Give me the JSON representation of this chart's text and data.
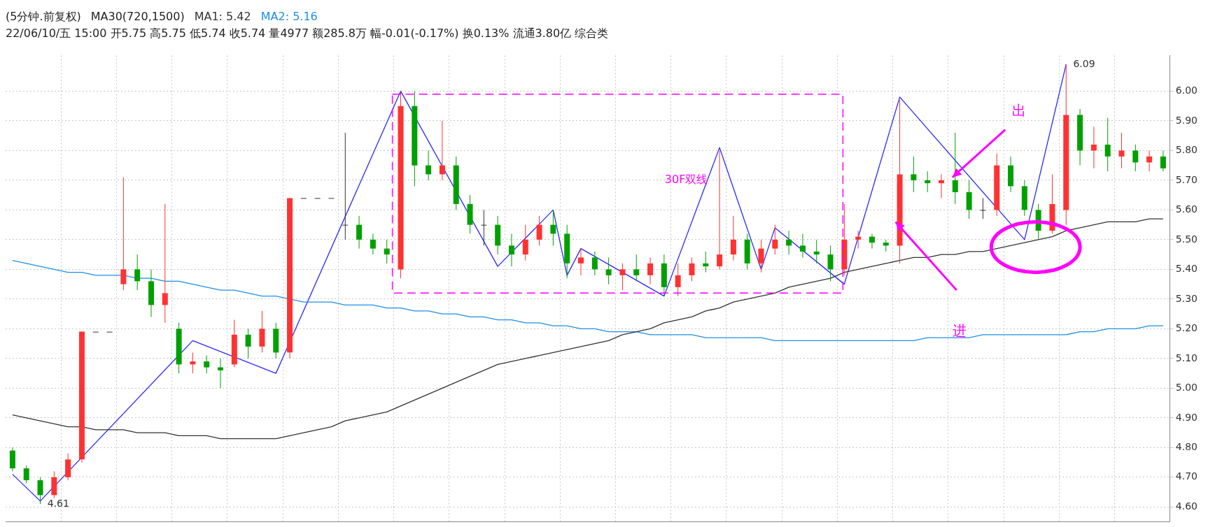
{
  "chart_data": {
    "type": "candlestick",
    "title": "(5分钟.前复权)",
    "subtitle": "22/06/10/五 15:00 开5.75 高5.75 低5.74 收5.74 量4977 额285.8万 幅-0.01(-0.17%) 换0.13% 流通3.80亿 综合类",
    "legend_title": "MA30(720,1500)",
    "categories": [
      null,
      null,
      null,
      null,
      null,
      null,
      null,
      null,
      null,
      null,
      null,
      null,
      null,
      null,
      null,
      null,
      null,
      null,
      null,
      null,
      null,
      null,
      null,
      null,
      null,
      null,
      null,
      null,
      null,
      null,
      null,
      null,
      null,
      null,
      null,
      null,
      null,
      null,
      null,
      null,
      null,
      null,
      null,
      null,
      null,
      null,
      null,
      null,
      null,
      null,
      null,
      null,
      null,
      null,
      null,
      null,
      null,
      null,
      null,
      null,
      null,
      null,
      null,
      null,
      null,
      null,
      null,
      null,
      null,
      null,
      null,
      null,
      null,
      null,
      null,
      null,
      null,
      null,
      null,
      null,
      null,
      null,
      null,
      null
    ],
    "ohlc": [
      [
        4.79,
        4.8,
        4.72,
        4.73
      ],
      [
        4.73,
        4.74,
        4.68,
        4.69
      ],
      [
        4.69,
        4.7,
        4.61,
        4.64
      ],
      [
        4.64,
        4.72,
        4.63,
        4.7
      ],
      [
        4.7,
        4.78,
        4.69,
        4.76
      ],
      [
        4.76,
        5.19,
        4.75,
        5.19
      ],
      [
        5.19,
        5.19,
        5.19,
        5.19
      ],
      [
        5.19,
        5.19,
        5.19,
        5.19
      ],
      [
        5.35,
        5.71,
        5.33,
        5.4
      ],
      [
        5.4,
        5.45,
        5.33,
        5.36
      ],
      [
        5.36,
        5.4,
        5.24,
        5.28
      ],
      [
        5.28,
        5.62,
        5.22,
        5.32
      ],
      [
        5.2,
        5.22,
        5.05,
        5.08
      ],
      [
        5.08,
        5.12,
        5.05,
        5.09
      ],
      [
        5.09,
        5.11,
        5.05,
        5.07
      ],
      [
        5.07,
        5.1,
        5.0,
        5.06
      ],
      [
        5.08,
        5.23,
        5.07,
        5.18
      ],
      [
        5.18,
        5.2,
        5.1,
        5.14
      ],
      [
        5.14,
        5.26,
        5.12,
        5.2
      ],
      [
        5.2,
        5.22,
        5.1,
        5.12
      ],
      [
        5.12,
        5.64,
        5.1,
        5.64
      ],
      [
        5.64,
        5.64,
        5.64,
        5.64
      ],
      [
        5.64,
        5.64,
        5.64,
        5.64
      ],
      [
        5.64,
        5.64,
        5.64,
        5.64
      ],
      [
        5.55,
        5.86,
        5.5,
        5.55
      ],
      [
        5.55,
        5.58,
        5.47,
        5.5
      ],
      [
        5.5,
        5.52,
        5.45,
        5.47
      ],
      [
        5.47,
        5.5,
        5.42,
        5.45
      ],
      [
        5.4,
        6.0,
        5.37,
        5.95
      ],
      [
        5.95,
        6.0,
        5.68,
        5.75
      ],
      [
        5.75,
        5.8,
        5.7,
        5.72
      ],
      [
        5.72,
        5.9,
        5.7,
        5.75
      ],
      [
        5.75,
        5.78,
        5.6,
        5.62
      ],
      [
        5.62,
        5.65,
        5.52,
        5.55
      ],
      [
        5.55,
        5.6,
        5.48,
        5.55
      ],
      [
        5.55,
        5.58,
        5.45,
        5.48
      ],
      [
        5.48,
        5.52,
        5.41,
        5.45
      ],
      [
        5.45,
        5.55,
        5.43,
        5.5
      ],
      [
        5.5,
        5.58,
        5.48,
        5.55
      ],
      [
        5.55,
        5.6,
        5.48,
        5.52
      ],
      [
        5.52,
        5.55,
        5.37,
        5.42
      ],
      [
        5.42,
        5.47,
        5.38,
        5.44
      ],
      [
        5.44,
        5.46,
        5.38,
        5.4
      ],
      [
        5.4,
        5.44,
        5.35,
        5.38
      ],
      [
        5.38,
        5.42,
        5.33,
        5.4
      ],
      [
        5.4,
        5.45,
        5.36,
        5.38
      ],
      [
        5.38,
        5.44,
        5.35,
        5.42
      ],
      [
        5.42,
        5.45,
        5.31,
        5.34
      ],
      [
        5.34,
        5.42,
        5.31,
        5.38
      ],
      [
        5.38,
        5.44,
        5.36,
        5.42
      ],
      [
        5.42,
        5.46,
        5.39,
        5.41
      ],
      [
        5.41,
        5.8,
        5.4,
        5.45
      ],
      [
        5.45,
        5.58,
        5.43,
        5.5
      ],
      [
        5.5,
        5.52,
        5.4,
        5.42
      ],
      [
        5.42,
        5.5,
        5.39,
        5.47
      ],
      [
        5.47,
        5.55,
        5.45,
        5.5
      ],
      [
        5.5,
        5.53,
        5.45,
        5.48
      ],
      [
        5.48,
        5.52,
        5.44,
        5.46
      ],
      [
        5.46,
        5.5,
        5.42,
        5.45
      ],
      [
        5.45,
        5.48,
        5.36,
        5.4
      ],
      [
        5.4,
        5.62,
        5.38,
        5.5
      ],
      [
        5.5,
        5.53,
        5.47,
        5.51
      ],
      [
        5.51,
        5.52,
        5.47,
        5.49
      ],
      [
        5.49,
        5.5,
        5.46,
        5.48
      ],
      [
        5.48,
        5.97,
        5.42,
        5.72
      ],
      [
        5.72,
        5.78,
        5.66,
        5.7
      ],
      [
        5.7,
        5.73,
        5.66,
        5.69
      ],
      [
        5.69,
        5.72,
        5.64,
        5.7
      ],
      [
        5.7,
        5.86,
        5.62,
        5.66
      ],
      [
        5.66,
        5.7,
        5.57,
        5.6
      ],
      [
        5.6,
        5.64,
        5.57,
        5.6
      ],
      [
        5.6,
        5.79,
        5.58,
        5.75
      ],
      [
        5.75,
        5.78,
        5.66,
        5.68
      ],
      [
        5.68,
        5.7,
        5.58,
        5.6
      ],
      [
        5.6,
        5.62,
        5.5,
        5.53
      ],
      [
        5.53,
        5.72,
        5.52,
        5.62
      ],
      [
        5.6,
        6.09,
        5.55,
        5.92
      ],
      [
        5.92,
        5.94,
        5.75,
        5.8
      ],
      [
        5.8,
        5.88,
        5.74,
        5.82
      ],
      [
        5.82,
        5.91,
        5.73,
        5.78
      ],
      [
        5.78,
        5.86,
        5.74,
        5.8
      ],
      [
        5.8,
        5.82,
        5.73,
        5.76
      ],
      [
        5.76,
        5.8,
        5.73,
        5.78
      ],
      [
        5.78,
        5.8,
        5.73,
        5.74
      ]
    ],
    "series": [
      {
        "type": "line",
        "name": "MA1: 5.42",
        "color": "#333333",
        "values": [
          4.91,
          4.9,
          4.89,
          4.88,
          4.87,
          4.87,
          4.86,
          4.86,
          4.86,
          4.85,
          4.85,
          4.85,
          4.84,
          4.84,
          4.84,
          4.83,
          4.83,
          4.83,
          4.83,
          4.83,
          4.84,
          4.85,
          4.86,
          4.87,
          4.89,
          4.9,
          4.91,
          4.92,
          4.94,
          4.96,
          4.98,
          5.0,
          5.02,
          5.04,
          5.06,
          5.08,
          5.09,
          5.1,
          5.11,
          5.12,
          5.13,
          5.14,
          5.15,
          5.16,
          5.18,
          5.19,
          5.2,
          5.22,
          5.23,
          5.24,
          5.26,
          5.27,
          5.29,
          5.3,
          5.31,
          5.32,
          5.34,
          5.35,
          5.36,
          5.37,
          5.39,
          5.4,
          5.41,
          5.42,
          5.43,
          5.44,
          5.44,
          5.45,
          5.45,
          5.46,
          5.46,
          5.47,
          5.48,
          5.49,
          5.5,
          5.51,
          5.53,
          5.54,
          5.55,
          5.56,
          5.56,
          5.56,
          5.57,
          5.57
        ]
      },
      {
        "type": "line",
        "name": "MA2: 5.16",
        "color": "#1e8fe6",
        "values": [
          5.43,
          5.42,
          5.41,
          5.4,
          5.39,
          5.39,
          5.38,
          5.38,
          5.38,
          5.37,
          5.37,
          5.36,
          5.36,
          5.35,
          5.34,
          5.33,
          5.33,
          5.32,
          5.31,
          5.31,
          5.3,
          5.29,
          5.29,
          5.29,
          5.28,
          5.28,
          5.28,
          5.27,
          5.27,
          5.26,
          5.26,
          5.25,
          5.25,
          5.24,
          5.24,
          5.23,
          5.23,
          5.22,
          5.22,
          5.21,
          5.21,
          5.2,
          5.2,
          5.19,
          5.19,
          5.19,
          5.18,
          5.18,
          5.18,
          5.18,
          5.17,
          5.17,
          5.17,
          5.17,
          5.17,
          5.16,
          5.16,
          5.16,
          5.16,
          5.16,
          5.16,
          5.16,
          5.16,
          5.16,
          5.16,
          5.16,
          5.17,
          5.17,
          5.17,
          5.17,
          5.18,
          5.18,
          5.18,
          5.18,
          5.18,
          5.18,
          5.18,
          5.19,
          5.19,
          5.2,
          5.2,
          5.2,
          5.21,
          5.21
        ]
      },
      {
        "type": "line",
        "color": "#2828ff",
        "values": [
          4.71,
          null,
          4.62,
          null,
          null,
          null,
          null,
          null,
          null,
          null,
          null,
          null,
          null,
          5.16,
          null,
          null,
          null,
          null,
          null,
          5.05,
          null,
          null,
          null,
          null,
          null,
          null,
          null,
          null,
          6.0,
          null,
          null,
          null,
          null,
          null,
          null,
          5.41,
          null,
          null,
          null,
          5.6,
          5.38,
          5.47,
          null,
          null,
          null,
          null,
          null,
          5.31,
          null,
          null,
          null,
          5.81,
          null,
          null,
          5.4,
          5.54,
          null,
          null,
          null,
          null,
          5.35,
          null,
          null,
          null,
          5.98,
          null,
          null,
          null,
          null,
          null,
          null,
          null,
          null,
          5.5,
          null,
          null,
          6.09,
          null,
          null,
          null,
          null,
          null,
          null,
          null
        ]
      }
    ],
    "marker": "none",
    "grid": true,
    "tick_labels": "y",
    "ylim": [
      4.55,
      6.12
    ],
    "yticks": [
      {
        "value": 4.6,
        "label": "4.60"
      },
      {
        "value": 4.7,
        "label": "4.70"
      },
      {
        "value": 4.8,
        "label": "4.80"
      },
      {
        "value": 4.9,
        "label": "4.90"
      },
      {
        "value": 5.0,
        "label": "5.00"
      },
      {
        "value": 5.1,
        "label": "5.10"
      },
      {
        "value": 5.2,
        "label": "5.20"
      },
      {
        "value": 5.3,
        "label": "5.30"
      },
      {
        "value": 5.4,
        "label": "5.40"
      },
      {
        "value": 5.5,
        "label": "5.50"
      },
      {
        "value": 5.6,
        "label": "5.60"
      },
      {
        "value": 5.7,
        "label": "5.70"
      },
      {
        "value": 5.8,
        "label": "5.80"
      },
      {
        "value": 5.9,
        "label": "5.90"
      },
      {
        "value": 6.0,
        "label": "6.00"
      }
    ],
    "annotations": [
      "4.61",
      "6.09",
      "30F双线",
      "出",
      "进"
    ]
  }
}
